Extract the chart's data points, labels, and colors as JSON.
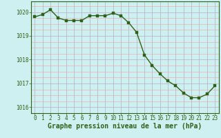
{
  "x": [
    0,
    1,
    2,
    3,
    4,
    5,
    6,
    7,
    8,
    9,
    10,
    11,
    12,
    13,
    14,
    15,
    16,
    17,
    18,
    19,
    20,
    21,
    22,
    23
  ],
  "y": [
    1019.8,
    1019.9,
    1020.1,
    1019.75,
    1019.65,
    1019.65,
    1019.65,
    1019.85,
    1019.85,
    1019.85,
    1019.95,
    1019.85,
    1019.55,
    1019.15,
    1018.2,
    1017.75,
    1017.4,
    1017.1,
    1016.9,
    1016.6,
    1016.4,
    1016.4,
    1016.55,
    1016.9
  ],
  "line_color": "#2d6018",
  "marker_color": "#2d6018",
  "bg_color": "#cef0f0",
  "grid_minor_color": "#e8b0b0",
  "grid_major_color": "#b8b8cc",
  "xlabel": "Graphe pression niveau de la mer (hPa)",
  "xlabel_color": "#2d6018",
  "ylim": [
    1015.75,
    1020.45
  ],
  "yticks": [
    1016,
    1017,
    1018,
    1019,
    1020
  ],
  "xticks": [
    0,
    1,
    2,
    3,
    4,
    5,
    6,
    7,
    8,
    9,
    10,
    11,
    12,
    13,
    14,
    15,
    16,
    17,
    18,
    19,
    20,
    21,
    22,
    23
  ],
  "tick_color": "#2d6018",
  "tick_fontsize": 5.5,
  "xlabel_fontsize": 7,
  "linewidth": 1.0,
  "markersize": 2.5
}
